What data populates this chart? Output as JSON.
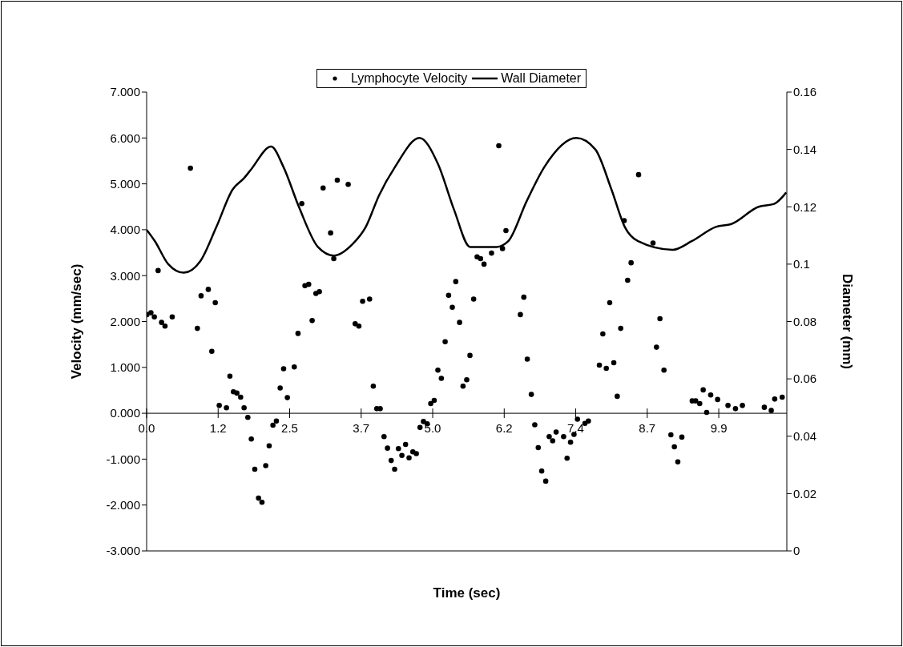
{
  "chart_data": {
    "type": "scatter",
    "xlabel": "Time (sec)",
    "ylabel": "Velocity (mm/sec)",
    "y2label": "Diameter (mm)",
    "xlim": [
      0,
      11.1
    ],
    "xticks": [
      {
        "value": 0,
        "label": "0.0"
      },
      {
        "value": 1.24,
        "label": "1.2"
      },
      {
        "value": 2.48,
        "label": "2.5"
      },
      {
        "value": 3.72,
        "label": "3.7"
      },
      {
        "value": 4.96,
        "label": "5.0"
      },
      {
        "value": 6.2,
        "label": "6.2"
      },
      {
        "value": 7.44,
        "label": "7.4"
      },
      {
        "value": 8.68,
        "label": "8.7"
      },
      {
        "value": 9.92,
        "label": "9.9"
      }
    ],
    "ylim": [
      -3,
      7
    ],
    "yticks": [
      {
        "value": -3,
        "label": "-3.000"
      },
      {
        "value": -2,
        "label": "-2.000"
      },
      {
        "value": -1,
        "label": "-1.000"
      },
      {
        "value": 0,
        "label": "0.000"
      },
      {
        "value": 1,
        "label": "1.000"
      },
      {
        "value": 2,
        "label": "2.000"
      },
      {
        "value": 3,
        "label": "3.000"
      },
      {
        "value": 4,
        "label": "4.000"
      },
      {
        "value": 5,
        "label": "5.000"
      },
      {
        "value": 6,
        "label": "6.000"
      },
      {
        "value": 7,
        "label": "7.000"
      }
    ],
    "y2lim": [
      0,
      0.16
    ],
    "y2ticks": [
      0,
      0.02,
      0.04,
      0.06,
      0.08,
      0.1,
      0.12,
      0.14,
      0.16
    ],
    "grid": false,
    "legend": "top",
    "series": [
      {
        "name": "Lymphocyte Velocity",
        "type": "scatter",
        "color": "#000000",
        "marker": "circle",
        "x": [
          0.005,
          0.074,
          0.134,
          0.199,
          0.259,
          0.319,
          0.444,
          0.759,
          0.88,
          0.944,
          1.069,
          1.13,
          1.19,
          1.259,
          1.384,
          1.444,
          1.505,
          1.565,
          1.63,
          1.69,
          1.755,
          1.815,
          1.875,
          1.94,
          2.0,
          2.065,
          2.125,
          2.19,
          2.25,
          2.315,
          2.375,
          2.44,
          2.56,
          2.625,
          2.69,
          2.745,
          2.81,
          2.87,
          2.935,
          2.995,
          3.06,
          3.19,
          3.245,
          3.306,
          3.495,
          3.616,
          3.68,
          3.745,
          3.866,
          3.93,
          3.99,
          4.05,
          4.116,
          4.176,
          4.24,
          4.3,
          4.366,
          4.426,
          4.49,
          4.55,
          4.616,
          4.676,
          4.74,
          4.8,
          4.866,
          4.926,
          4.986,
          5.05,
          5.11,
          5.176,
          5.236,
          5.3,
          5.36,
          5.426,
          5.486,
          5.55,
          5.606,
          5.67,
          5.73,
          5.79,
          5.85,
          5.98,
          6.106,
          6.17,
          6.23,
          6.48,
          6.54,
          6.6,
          6.67,
          6.73,
          6.79,
          6.85,
          6.92,
          6.98,
          7.04,
          7.1,
          7.23,
          7.29,
          7.35,
          7.41,
          7.47,
          7.6,
          7.66,
          7.85,
          7.91,
          7.97,
          8.03,
          8.1,
          8.16,
          8.22,
          8.28,
          8.34,
          8.4,
          8.53,
          8.78,
          8.84,
          8.9,
          8.97,
          9.09,
          9.15,
          9.21,
          9.28,
          9.46,
          9.52,
          9.59,
          9.65,
          9.71,
          9.78,
          9.9,
          10.08,
          10.21,
          10.33,
          10.71,
          10.83,
          10.89,
          11.02
        ],
        "values": [
          2.15,
          2.19,
          2.1,
          3.11,
          1.98,
          1.9,
          2.1,
          5.34,
          1.85,
          2.56,
          2.7,
          1.35,
          2.41,
          0.17,
          0.12,
          0.81,
          0.47,
          0.44,
          0.35,
          0.12,
          -0.09,
          -0.56,
          -1.22,
          -1.85,
          -1.94,
          -1.14,
          -0.71,
          -0.26,
          -0.17,
          0.55,
          0.97,
          0.34,
          1.01,
          1.74,
          4.57,
          2.78,
          2.81,
          2.02,
          2.61,
          2.65,
          4.91,
          3.93,
          3.37,
          5.08,
          4.99,
          1.95,
          1.9,
          2.44,
          2.49,
          0.59,
          0.1,
          0.1,
          -0.51,
          -0.76,
          -1.03,
          -1.22,
          -0.77,
          -0.92,
          -0.68,
          -0.97,
          -0.84,
          -0.88,
          -0.31,
          -0.18,
          -0.23,
          0.21,
          0.28,
          0.94,
          0.76,
          1.56,
          2.57,
          2.31,
          2.87,
          1.98,
          0.59,
          0.73,
          1.26,
          2.49,
          3.41,
          3.37,
          3.25,
          3.49,
          5.83,
          3.59,
          3.98,
          2.15,
          2.53,
          1.18,
          0.41,
          -0.25,
          -0.75,
          -1.26,
          -1.48,
          -0.51,
          -0.6,
          -0.41,
          -0.51,
          -0.98,
          -0.63,
          -0.46,
          -0.13,
          -0.22,
          -0.17,
          1.05,
          1.73,
          0.98,
          2.41,
          1.1,
          0.37,
          1.85,
          4.2,
          2.9,
          3.28,
          5.2,
          3.71,
          1.44,
          2.06,
          0.94,
          -0.47,
          -0.73,
          -1.06,
          -0.52,
          0.27,
          0.27,
          0.21,
          0.51,
          0.02,
          0.4,
          0.3,
          0.17,
          0.1,
          0.17,
          0.13,
          0.06,
          0.31,
          0.35
        ]
      },
      {
        "name": "Wall Diameter",
        "type": "line",
        "axis": "y2",
        "color": "#000000",
        "marker": "none",
        "line_style": "solid",
        "x": [
          0,
          0.144,
          0.375,
          0.644,
          0.93,
          1.21,
          1.49,
          1.69,
          1.81,
          2.16,
          2.37,
          2.64,
          2.97,
          3.245,
          3.57,
          3.8,
          4.03,
          4.31,
          4.73,
          5.05,
          5.33,
          5.61,
          6.07,
          6.27,
          6.59,
          6.9,
          7.45,
          7.78,
          8.06,
          8.29,
          8.52,
          9.12,
          9.45,
          9.87,
          10.14,
          10.61,
          10.88,
          11.09
        ],
        "values": [
          0.112,
          0.108,
          0.1,
          0.097,
          0.101,
          0.113,
          0.126,
          0.13,
          0.133,
          0.141,
          0.134,
          0.12,
          0.106,
          0.103,
          0.107,
          0.113,
          0.124,
          0.134,
          0.144,
          0.135,
          0.119,
          0.106,
          0.106,
          0.108,
          0.122,
          0.134,
          0.144,
          0.14,
          0.126,
          0.113,
          0.108,
          0.105,
          0.108,
          0.113,
          0.114,
          0.12,
          0.121,
          0.125
        ]
      }
    ]
  }
}
